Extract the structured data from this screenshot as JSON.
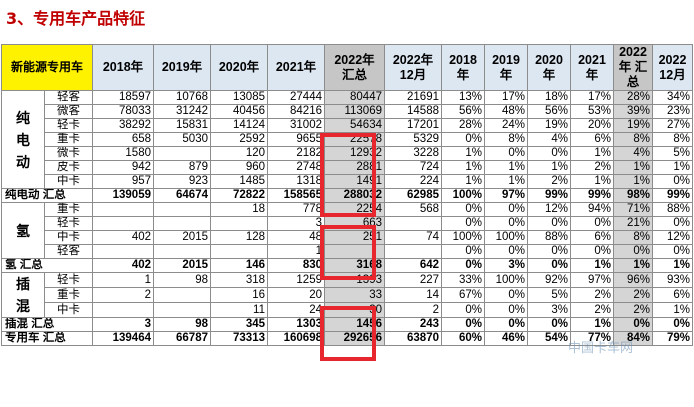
{
  "heading": "3、专用车产品特征",
  "table": {
    "header": {
      "corner": "新能源专用车",
      "cols": [
        "2018年",
        "2019年",
        "2020年",
        "2021年",
        "2022年\n汇总",
        "2022年\n12月",
        "2018\n年",
        "2019\n年",
        "2020\n年",
        "2021\n年",
        "2022\n年 汇\n总",
        "2022\n12月"
      ]
    },
    "groups": [
      {
        "name": "纯\n电\n动",
        "rows": [
          {
            "sub": "轻客",
            "values": [
              "18597",
              "10768",
              "13085",
              "27444",
              "80447",
              "21691",
              "13%",
              "17%",
              "18%",
              "17%",
              "28%",
              "34%"
            ]
          },
          {
            "sub": "微客",
            "values": [
              "78033",
              "31242",
              "40456",
              "84216",
              "113069",
              "14588",
              "56%",
              "48%",
              "56%",
              "53%",
              "39%",
              "23%"
            ]
          },
          {
            "sub": "轻卡",
            "values": [
              "38292",
              "15831",
              "14124",
              "31002",
              "54634",
              "17201",
              "28%",
              "24%",
              "19%",
              "20%",
              "19%",
              "27%"
            ]
          },
          {
            "sub": "重卡",
            "values": [
              "658",
              "5030",
              "2592",
              "9655",
              "22578",
              "5329",
              "0%",
              "8%",
              "4%",
              "6%",
              "8%",
              "8%"
            ]
          },
          {
            "sub": "微卡",
            "values": [
              "1580",
              "",
              "120",
              "2182",
              "12932",
              "3228",
              "1%",
              "0%",
              "0%",
              "1%",
              "4%",
              "5%"
            ]
          },
          {
            "sub": "皮卡",
            "values": [
              "942",
              "879",
              "960",
              "2748",
              "2881",
              "724",
              "1%",
              "1%",
              "1%",
              "2%",
              "1%",
              "1%"
            ]
          },
          {
            "sub": "中卡",
            "values": [
              "957",
              "923",
              "1485",
              "1318",
              "1491",
              "224",
              "1%",
              "1%",
              "2%",
              "1%",
              "1%",
              "0%"
            ]
          }
        ],
        "total": {
          "label": "纯电动 汇总",
          "values": [
            "139059",
            "64674",
            "72822",
            "158565",
            "288032",
            "62985",
            "100%",
            "97%",
            "99%",
            "99%",
            "98%",
            "99%"
          ]
        }
      },
      {
        "name": "氢",
        "rows": [
          {
            "sub": "重卡",
            "values": [
              "",
              "",
              "18",
              "778",
              "2254",
              "568",
              "0%",
              "0%",
              "12%",
              "94%",
              "71%",
              "88%"
            ]
          },
          {
            "sub": "轻卡",
            "values": [
              "",
              "",
              "",
              "3",
              "663",
              "",
              "0%",
              "0%",
              "0%",
              "0%",
              "21%",
              "0%"
            ]
          },
          {
            "sub": "中卡",
            "values": [
              "402",
              "2015",
              "128",
              "48",
              "251",
              "74",
              "100%",
              "100%",
              "88%",
              "6%",
              "8%",
              "12%"
            ]
          },
          {
            "sub": "轻客",
            "values": [
              "",
              "",
              "",
              "1",
              "",
              "",
              "0%",
              "0%",
              "0%",
              "0%",
              "0%",
              "0%"
            ]
          }
        ],
        "total": {
          "label": "氢 汇总",
          "values": [
            "402",
            "2015",
            "146",
            "830",
            "3168",
            "642",
            "0%",
            "3%",
            "0%",
            "1%",
            "1%",
            "1%"
          ]
        }
      },
      {
        "name": "插\n混",
        "rows": [
          {
            "sub": "轻卡",
            "values": [
              "1",
              "98",
              "318",
              "1259",
              "1393",
              "227",
              "33%",
              "100%",
              "92%",
              "97%",
              "96%",
              "93%"
            ]
          },
          {
            "sub": "重卡",
            "values": [
              "2",
              "",
              "16",
              "20",
              "33",
              "14",
              "67%",
              "0%",
              "5%",
              "2%",
              "2%",
              "6%"
            ]
          },
          {
            "sub": "中卡",
            "values": [
              "",
              "",
              "11",
              "24",
              "30",
              "2",
              "0%",
              "0%",
              "3%",
              "2%",
              "2%",
              "1%"
            ]
          }
        ],
        "total": {
          "label": "插混 汇总",
          "values": [
            "3",
            "98",
            "345",
            "1303",
            "1456",
            "243",
            "0%",
            "0%",
            "0%",
            "1%",
            "0%",
            "0%"
          ]
        }
      }
    ],
    "grand_total": {
      "label": "专用车 汇总",
      "values": [
        "139464",
        "66787",
        "73313",
        "160698",
        "292656",
        "63870",
        "60%",
        "46%",
        "54%",
        "77%",
        "84%",
        "79%"
      ]
    }
  },
  "watermark": "中国卡车网",
  "colors": {
    "highlight_box": "#e8262d",
    "header_bg": "#dde7f2",
    "corner_bg": "#fff200",
    "gray_column": "#d5d5d5",
    "heading": "#c00000"
  }
}
